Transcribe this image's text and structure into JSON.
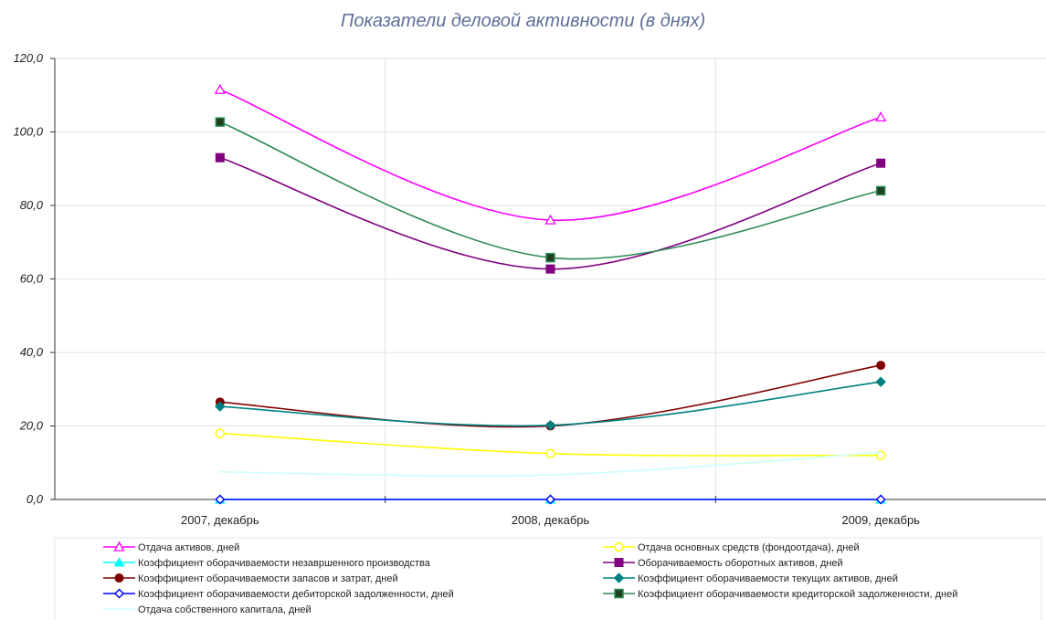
{
  "chart_data": {
    "type": "line",
    "title": "Показатели деловой активности (в днях)",
    "categories": [
      "2007, декабрь",
      "2008, декабрь",
      "2009, декабрь"
    ],
    "ylim": [
      0,
      120
    ],
    "yticks": [
      "0,0",
      "20,0",
      "40,0",
      "60,0",
      "80,0",
      "100,0",
      "120,0"
    ],
    "grid": true,
    "legend_position": "bottom",
    "series": [
      {
        "name": "Отдача активов, дней",
        "values": [
          111.5,
          76.0,
          104.0
        ],
        "color": "#ff00ff",
        "marker": "triangle-open"
      },
      {
        "name": "Отдача основных средств (фондоотдача), дней",
        "values": [
          18.0,
          12.5,
          12.0
        ],
        "color": "#ffff00",
        "marker": "circle-open"
      },
      {
        "name": "Коэффициент оборачиваемости незавршенного производства",
        "values": [
          0,
          0,
          0
        ],
        "color": "#00ffff",
        "marker": "triangle"
      },
      {
        "name": "Оборачиваемость оборотных активов, дней",
        "values": [
          93.0,
          62.7,
          91.5
        ],
        "color": "#800080",
        "marker": "square"
      },
      {
        "name": "Коэффициент оборачиваемости запасов и затрат, дней",
        "values": [
          26.5,
          20.0,
          36.5
        ],
        "color": "#800000",
        "marker": "circle"
      },
      {
        "name": "Коэффициент оборачиваемости текущих активов, дней",
        "values": [
          25.3,
          20.2,
          32.0
        ],
        "color": "#008080",
        "marker": "diamond"
      },
      {
        "name": "Коэффициент оборачиваемости дебиторской задолженности, дней",
        "values": [
          0,
          0,
          0
        ],
        "color": "#0000ff",
        "marker": "diamond-open"
      },
      {
        "name": "Коэффициент оборачиваемости кредиторской задолженности, дней",
        "values": [
          102.7,
          65.8,
          84.0
        ],
        "color": "#2e8b57",
        "marker": "square-dark"
      },
      {
        "name": "Отдача собственного капитала, дней",
        "values": [
          7.5,
          6.7,
          12.8
        ],
        "color": "#ccffff",
        "marker": "none"
      }
    ]
  }
}
